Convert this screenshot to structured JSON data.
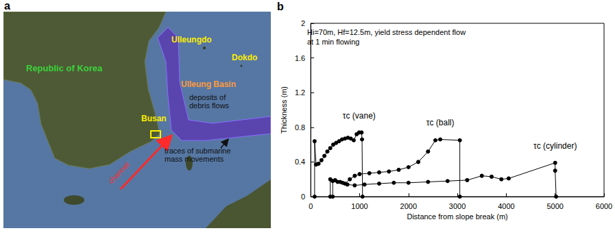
{
  "map": {
    "letter": "a",
    "labels": {
      "country": "Republic of Korea",
      "city": "Busan",
      "island1": "Ulleungdo",
      "island2": "Dokdo",
      "basin": "Ulleung Basin",
      "deposits": "deposits of debris flows",
      "traces": "traces of submarine mass movements",
      "channel": "channel"
    }
  },
  "chart": {
    "letter": "b"
  },
  "chart_data": {
    "type": "line",
    "annotations": [
      "Hi=70m, Hf=12.5m, yield stress dependent flow",
      "at 1 min flowing"
    ],
    "x_label": "Distance from slope break (m)",
    "y_label": "Thickness (m)",
    "xlim": [
      0,
      6000
    ],
    "xticks": [
      0,
      1000,
      2000,
      3000,
      4000,
      5000,
      6000
    ],
    "ylim": [
      0,
      2
    ],
    "yticks": [
      0,
      0.4,
      0.8,
      1.2,
      1.6,
      2
    ],
    "grid": false,
    "marker": "circle",
    "line_style": "solid",
    "color": "#000000",
    "series": [
      {
        "name": "τc (vane)",
        "x": [
          80,
          80,
          110,
          160,
          220,
          280,
          340,
          400,
          460,
          520,
          580,
          640,
          700,
          760,
          820,
          880,
          940,
          990,
          1040,
          1050,
          1060
        ],
        "values": [
          0,
          0.64,
          0.37,
          0.38,
          0.42,
          0.47,
          0.52,
          0.56,
          0.6,
          0.62,
          0.64,
          0.66,
          0.67,
          0.68,
          0.67,
          0.65,
          0.72,
          0.74,
          0.74,
          0.66,
          0
        ]
      },
      {
        "name": "τc (ball)",
        "x": [
          400,
          400,
          500,
          600,
          700,
          800,
          900,
          1000,
          1200,
          1400,
          1600,
          1800,
          2000,
          2200,
          2400,
          2550,
          2650,
          3050,
          3050
        ],
        "values": [
          0,
          0.2,
          0.19,
          0.17,
          0.15,
          0.2,
          0.24,
          0.26,
          0.27,
          0.28,
          0.29,
          0.31,
          0.34,
          0.4,
          0.52,
          0.65,
          0.66,
          0.65,
          0
        ]
      },
      {
        "name": "τc (cylinder)",
        "x": [
          450,
          450,
          550,
          650,
          750,
          900,
          1100,
          1400,
          1700,
          2000,
          2400,
          2800,
          3200,
          3500,
          3700,
          3900,
          4050,
          5000,
          5000,
          5020
        ],
        "values": [
          0,
          0.18,
          0.17,
          0.16,
          0.14,
          0.13,
          0.14,
          0.15,
          0.16,
          0.16,
          0.17,
          0.18,
          0.19,
          0.24,
          0.23,
          0.2,
          0.21,
          0.39,
          0.3,
          0
        ]
      }
    ]
  }
}
